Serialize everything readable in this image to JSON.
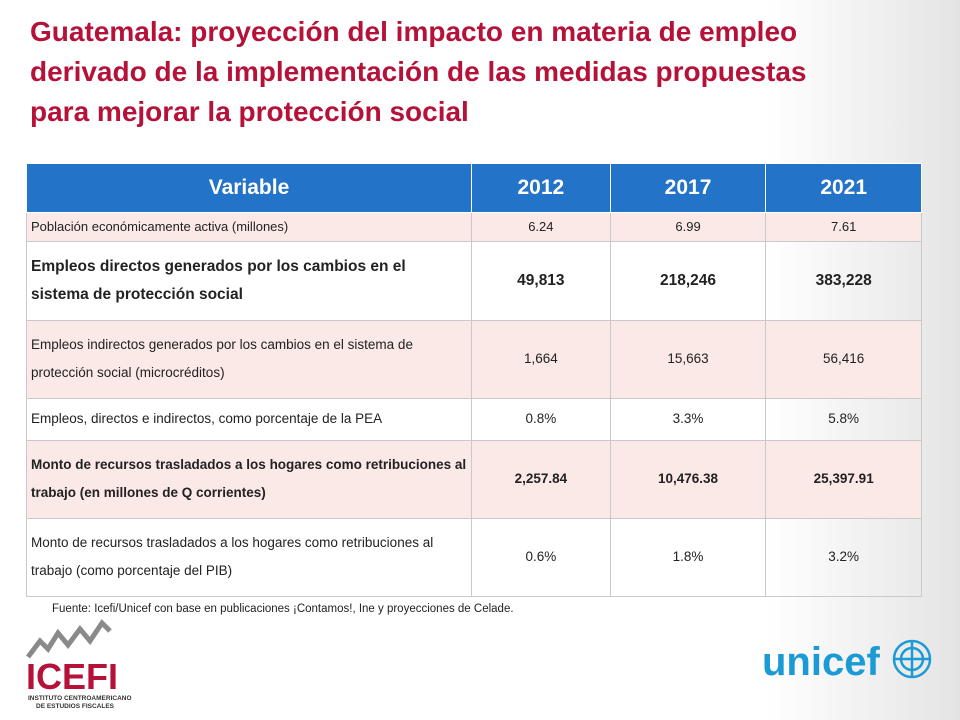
{
  "title": [
    "Guatemala: proyección del impacto en materia de empleo",
    "derivado de la implementación de las medidas propuestas",
    "para mejorar la protección social"
  ],
  "table": {
    "header": [
      "Variable",
      "2012",
      "2017",
      "2021"
    ],
    "rows": [
      [
        "Población económicamente activa (millones)",
        "6.24",
        "6.99",
        "7.61"
      ],
      [
        "Empleos directos generados por los cambios en el sistema de protección social",
        "49,813",
        "218,246",
        "383,228"
      ],
      [
        "Empleos indirectos generados por los cambios en el sistema de protección social (microcréditos)",
        "1,664",
        "15,663",
        "56,416"
      ],
      [
        "Empleos, directos e indirectos, como porcentaje de la PEA",
        "0.8%",
        "3.3%",
        "5.8%"
      ],
      [
        "Monto de recursos trasladados a los hogares como retribuciones al trabajo (en millones de Q corrientes)",
        "2,257.84",
        "10,476.38",
        "25,397.91"
      ],
      [
        "Monto de recursos trasladados a los hogares como retribuciones al trabajo (como porcentaje del PIB)",
        "0.6%",
        "1.8%",
        "3.2%"
      ]
    ]
  },
  "source": "Fuente: Icefi/Unicef con base en publicaciones ¡Contamos!, Ine y proyecciones de Celade.",
  "logos": {
    "icefi": "ICEFI",
    "icefi_sub": [
      "INSTITUTO CENTROAMERICANO",
      "DE ESTUDIOS FISCALES"
    ],
    "unicef": "unicef"
  }
}
